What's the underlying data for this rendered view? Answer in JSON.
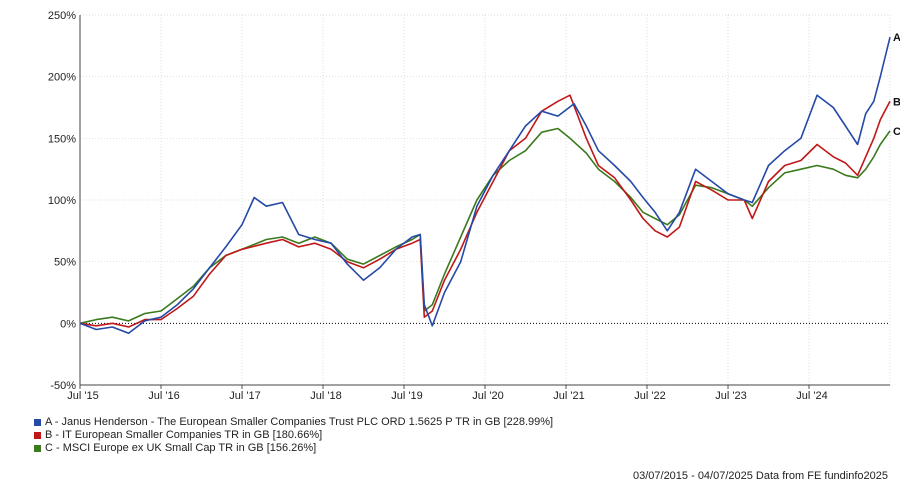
{
  "chart_data": {
    "type": "line",
    "y_ticks": [
      "250%",
      "200%",
      "150%",
      "100%",
      "50%",
      "0%",
      "-50%"
    ],
    "y_tick_values": [
      250,
      200,
      150,
      100,
      50,
      0,
      -50
    ],
    "ylim": [
      -50,
      250
    ],
    "x_ticks": [
      "Jul '15",
      "Jul '16",
      "Jul '17",
      "Jul '18",
      "Jul '19",
      "Jul '20",
      "Jul '21",
      "Jul '22",
      "Jul '23",
      "Jul '24"
    ],
    "x_tick_values": [
      2015.5,
      2016.5,
      2017.5,
      2018.5,
      2019.5,
      2020.5,
      2021.5,
      2022.5,
      2023.5,
      2024.5
    ],
    "xlim": [
      2015.5,
      2025.5
    ],
    "grid": true,
    "legend_position": "bottom-left",
    "zero_line": "dotted",
    "series": [
      {
        "name": "A - Janus Henderson - The European Smaller Companies Trust PLC ORD 1.5625 P TR in GB [228.99%]",
        "end_label": "A",
        "color": "#2549a8",
        "x": [
          2015.5,
          2015.7,
          2015.9,
          2016.1,
          2016.3,
          2016.5,
          2016.7,
          2016.9,
          2017.1,
          2017.3,
          2017.5,
          2017.65,
          2017.8,
          2018.0,
          2018.2,
          2018.4,
          2018.6,
          2018.8,
          2019.0,
          2019.2,
          2019.4,
          2019.6,
          2019.7,
          2019.75,
          2019.85,
          2020.0,
          2020.2,
          2020.4,
          2020.6,
          2020.8,
          2021.0,
          2021.2,
          2021.4,
          2021.6,
          2021.75,
          2021.9,
          2022.1,
          2022.3,
          2022.45,
          2022.6,
          2022.75,
          2022.9,
          2023.1,
          2023.3,
          2023.5,
          2023.7,
          2023.8,
          2024.0,
          2024.2,
          2024.4,
          2024.6,
          2024.8,
          2024.95,
          2025.1,
          2025.2,
          2025.3,
          2025.38,
          2025.5
        ],
        "y": [
          0,
          -5,
          -3,
          -8,
          2,
          5,
          15,
          28,
          45,
          62,
          80,
          102,
          95,
          98,
          72,
          68,
          65,
          48,
          35,
          45,
          60,
          70,
          72,
          15,
          -2,
          25,
          50,
          95,
          120,
          140,
          160,
          172,
          168,
          178,
          160,
          140,
          128,
          115,
          102,
          90,
          75,
          90,
          125,
          115,
          105,
          100,
          98,
          128,
          140,
          150,
          185,
          175,
          160,
          145,
          170,
          180,
          200,
          232
        ]
      },
      {
        "name": "B - IT European Smaller Companies TR in GB [180.66%]",
        "end_label": "B",
        "color": "#c01818",
        "x": [
          2015.5,
          2015.7,
          2015.9,
          2016.1,
          2016.3,
          2016.5,
          2016.7,
          2016.9,
          2017.1,
          2017.3,
          2017.5,
          2017.8,
          2018.0,
          2018.2,
          2018.4,
          2018.6,
          2018.8,
          2019.0,
          2019.2,
          2019.4,
          2019.6,
          2019.7,
          2019.75,
          2019.85,
          2020.0,
          2020.2,
          2020.4,
          2020.6,
          2020.8,
          2021.0,
          2021.2,
          2021.4,
          2021.55,
          2021.75,
          2021.9,
          2022.1,
          2022.3,
          2022.45,
          2022.6,
          2022.75,
          2022.9,
          2023.1,
          2023.3,
          2023.5,
          2023.7,
          2023.8,
          2024.0,
          2024.2,
          2024.4,
          2024.6,
          2024.8,
          2024.95,
          2025.1,
          2025.2,
          2025.3,
          2025.38,
          2025.5
        ],
        "y": [
          0,
          -2,
          0,
          -3,
          3,
          3,
          12,
          22,
          40,
          55,
          60,
          65,
          68,
          62,
          65,
          60,
          50,
          45,
          52,
          60,
          65,
          68,
          5,
          10,
          35,
          60,
          90,
          115,
          140,
          150,
          172,
          180,
          185,
          150,
          128,
          118,
          100,
          85,
          75,
          70,
          78,
          115,
          108,
          100,
          100,
          85,
          115,
          128,
          132,
          145,
          135,
          130,
          120,
          135,
          150,
          165,
          180
        ]
      },
      {
        "name": "C - MSCI Europe ex UK Small Cap TR in GB [156.26%]",
        "end_label": "C",
        "color": "#3b7a1e",
        "x": [
          2015.5,
          2015.7,
          2015.9,
          2016.1,
          2016.3,
          2016.5,
          2016.7,
          2016.9,
          2017.1,
          2017.3,
          2017.5,
          2017.8,
          2018.0,
          2018.2,
          2018.4,
          2018.6,
          2018.8,
          2019.0,
          2019.2,
          2019.4,
          2019.6,
          2019.7,
          2019.75,
          2019.85,
          2020.0,
          2020.2,
          2020.4,
          2020.6,
          2020.8,
          2021.0,
          2021.2,
          2021.4,
          2021.55,
          2021.75,
          2021.9,
          2022.1,
          2022.3,
          2022.45,
          2022.6,
          2022.75,
          2022.9,
          2023.1,
          2023.3,
          2023.5,
          2023.7,
          2023.8,
          2024.0,
          2024.2,
          2024.4,
          2024.6,
          2024.8,
          2024.95,
          2025.1,
          2025.2,
          2025.3,
          2025.38,
          2025.5
        ],
        "y": [
          0,
          3,
          5,
          2,
          8,
          10,
          20,
          30,
          45,
          55,
          60,
          68,
          70,
          65,
          70,
          65,
          52,
          48,
          55,
          62,
          68,
          72,
          10,
          15,
          40,
          70,
          100,
          120,
          132,
          140,
          155,
          158,
          150,
          138,
          125,
          115,
          102,
          90,
          85,
          80,
          88,
          112,
          110,
          105,
          100,
          95,
          110,
          122,
          125,
          128,
          125,
          120,
          118,
          125,
          135,
          145,
          156
        ]
      }
    ],
    "footer": "03/07/2015 - 04/07/2025 Data from FE fundinfo2025"
  }
}
